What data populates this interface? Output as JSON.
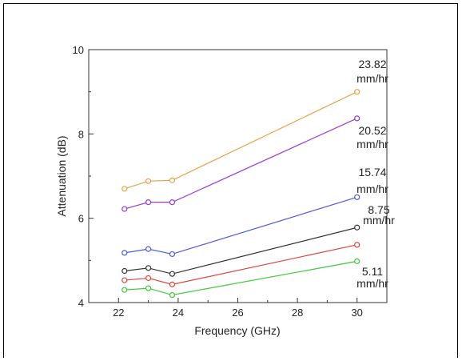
{
  "chart_data": {
    "type": "line",
    "title": "",
    "xlabel": "Frequency (GHz)",
    "ylabel": "Attenuation (dB)",
    "xlim": [
      21,
      31
    ],
    "ylim": [
      4,
      10
    ],
    "x_ticks": [
      22,
      24,
      26,
      28,
      30
    ],
    "y_ticks": [
      4,
      6,
      8,
      10
    ],
    "grid": false,
    "legend": "none",
    "x": [
      22.2,
      23.0,
      23.8,
      30.0
    ],
    "series": [
      {
        "label": "23.82 mm/hr",
        "label_line1": "23.82",
        "label_line2": "mm/hr",
        "color": "#e3a24a",
        "values": [
          6.7,
          6.88,
          6.9,
          9.0
        ]
      },
      {
        "label": "20.52 mm/hr",
        "label_line1": "20.52",
        "label_line2": "mm/hr",
        "color": "#9a3ad1",
        "values": [
          6.22,
          6.38,
          6.38,
          8.37
        ]
      },
      {
        "label": "15.74 mm/hr",
        "label_line1": "15.74",
        "label_line2": "mm/hr",
        "color": "#4f5ad6",
        "values": [
          5.18,
          5.27,
          5.15,
          6.5
        ]
      },
      {
        "label": "8.75 mm/hr",
        "label_line1": "8.75",
        "label_line2": "mm/hr",
        "color": "#333333",
        "values": [
          4.75,
          4.82,
          4.68,
          5.78
        ]
      },
      {
        "label": "",
        "label_line1": "",
        "label_line2": "",
        "color": "#d9453f",
        "values": [
          4.53,
          4.58,
          4.43,
          5.37
        ]
      },
      {
        "label": "5.11 mm/hr",
        "label_line1": "5.11",
        "label_line2": "mm/hr",
        "color": "#3ec73e",
        "values": [
          4.3,
          4.34,
          4.18,
          4.98
        ]
      }
    ]
  }
}
